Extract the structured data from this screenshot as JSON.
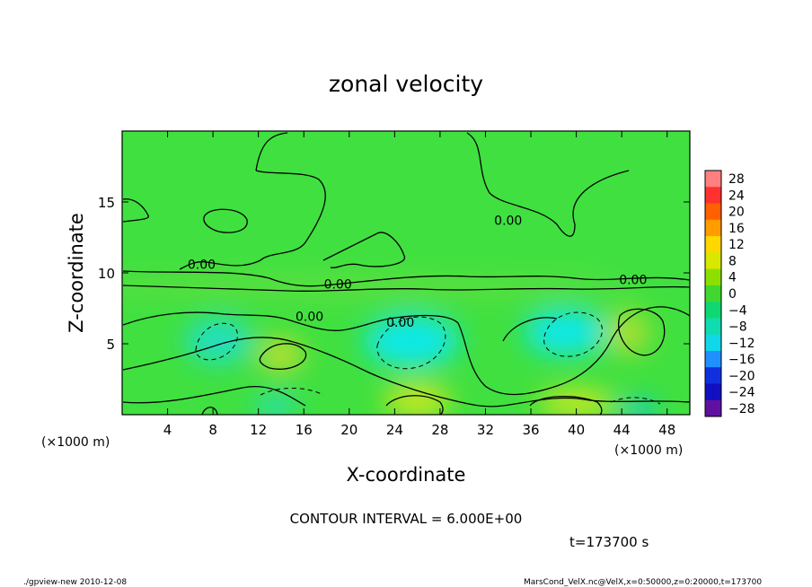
{
  "chart_data": {
    "type": "heatmap",
    "title": "zonal velocity",
    "xlabel": "X-coordinate",
    "ylabel": "Z-coordinate",
    "x_unit_label": "(×1000 m)",
    "y_unit_label": "(×1000 m)",
    "xlim": [
      0,
      50
    ],
    "ylim": [
      0,
      20
    ],
    "x_ticks": [
      4,
      8,
      12,
      16,
      20,
      24,
      28,
      32,
      36,
      40,
      44,
      48
    ],
    "y_ticks": [
      5,
      10,
      15
    ],
    "colorbar": {
      "levels": [
        28,
        24,
        20,
        16,
        12,
        8,
        4,
        0,
        -4,
        -8,
        -12,
        -16,
        -20,
        -24,
        -28
      ],
      "colors": [
        "#ff8080",
        "#ff3030",
        "#ff6000",
        "#ff9c00",
        "#ffd800",
        "#d8e800",
        "#8ce000",
        "#40d830",
        "#10d870",
        "#10dcb0",
        "#10d8e8",
        "#2090ff",
        "#1030e0",
        "#1010c0",
        "#6010a0"
      ]
    },
    "background_field": "#40e040",
    "field_blobs": [
      {
        "x": 25.5,
        "z": 5.2,
        "rx": 4.2,
        "rz": 1.8,
        "color": "#10e8e8"
      },
      {
        "x": 39.0,
        "z": 5.8,
        "rx": 3.6,
        "rz": 1.6,
        "color": "#10e8e8"
      },
      {
        "x": 8.5,
        "z": 5.2,
        "rx": 3.0,
        "rz": 1.6,
        "color": "#20e0c0"
      },
      {
        "x": 14.0,
        "z": 4.2,
        "rx": 2.0,
        "rz": 1.2,
        "color": "#c0e030"
      },
      {
        "x": 44.5,
        "z": 5.8,
        "rx": 2.0,
        "rz": 1.6,
        "color": "#a8e030"
      },
      {
        "x": 26.0,
        "z": 1.0,
        "rx": 3.0,
        "rz": 1.2,
        "color": "#c8e820"
      },
      {
        "x": 40.0,
        "z": 0.8,
        "rx": 3.4,
        "rz": 1.0,
        "color": "#c8e820"
      },
      {
        "x": 13.5,
        "z": 0.6,
        "rx": 1.8,
        "rz": 0.8,
        "color": "#20e0c0"
      },
      {
        "x": 45.5,
        "z": 0.3,
        "rx": 1.6,
        "rz": 0.6,
        "color": "#10c8f0"
      },
      {
        "x": 20.0,
        "z": 9.0,
        "rx": 25.0,
        "rz": 0.7,
        "color": "#60e040"
      }
    ],
    "contour_labels": [
      {
        "text": "0.00",
        "x": 34.0,
        "z": 13.4
      },
      {
        "text": "0.00",
        "x": 7.0,
        "z": 10.3
      },
      {
        "text": "0.00",
        "x": 19.0,
        "z": 8.9
      },
      {
        "text": "0.00",
        "x": 45.0,
        "z": 9.2
      },
      {
        "text": "0.00",
        "x": 16.5,
        "z": 6.6
      },
      {
        "text": "0.00",
        "x": 24.5,
        "z": 6.2
      }
    ],
    "contour_interval_text": "CONTOUR INTERVAL = 6.000E+00",
    "time_text": "t=173700 s"
  },
  "footer": {
    "left": "./gpview-new  2010-12-08",
    "right": "MarsCond_VelX.nc@VelX,x=0:50000,z=0:20000,t=173700"
  }
}
